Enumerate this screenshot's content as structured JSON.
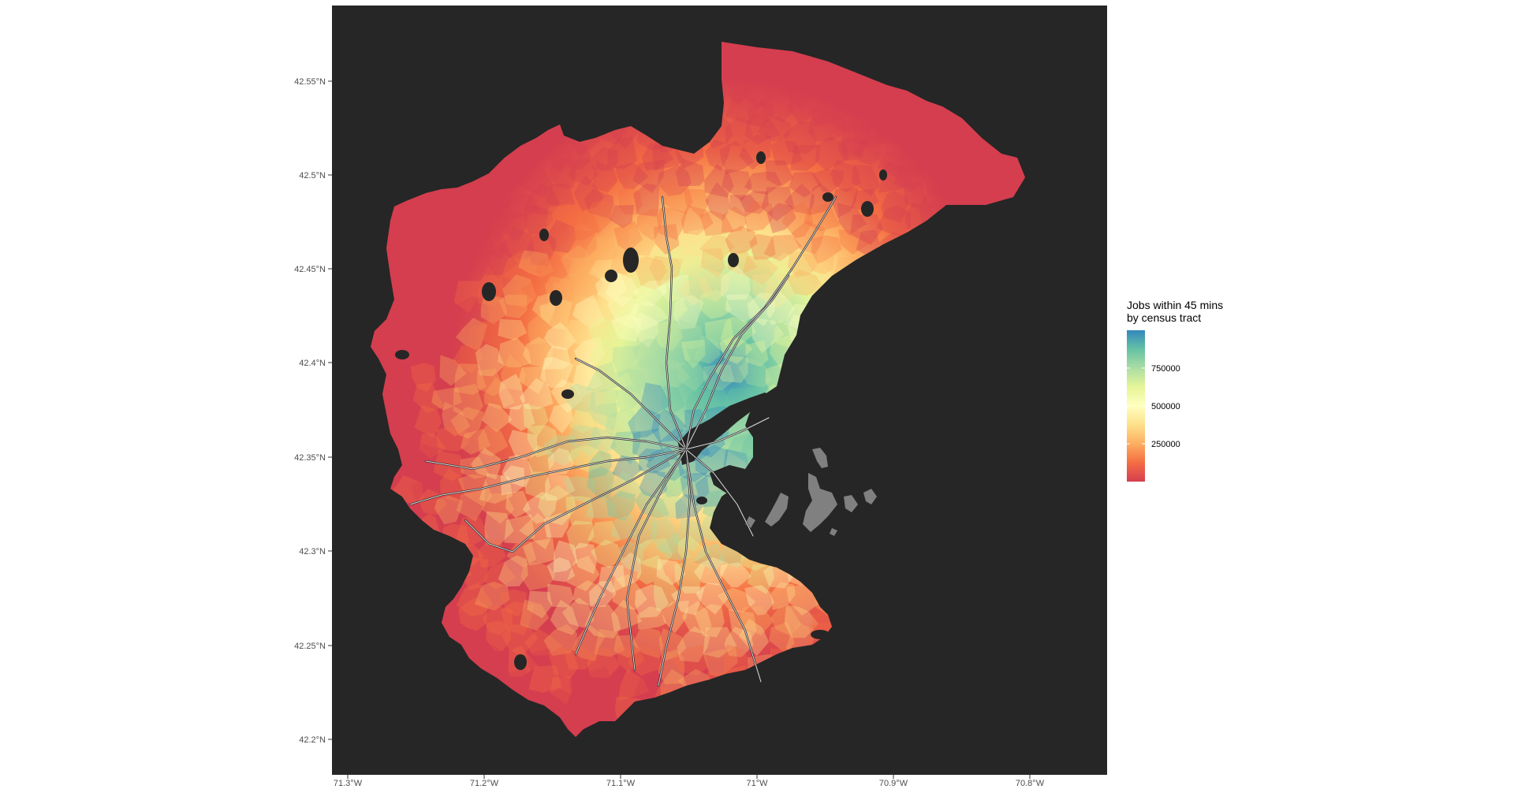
{
  "map": {
    "background_color": "#262626",
    "water_island_color": "#808080",
    "transit_line_color": "#ffffff",
    "palette": [
      "#d53e4f",
      "#f46d43",
      "#fdae61",
      "#fee08b",
      "#ffffbf",
      "#e6f598",
      "#abdda4",
      "#66c2a5",
      "#3288bd"
    ],
    "y_axis_ticks": [
      "42.55°N",
      "42.5°N",
      "42.45°N",
      "42.4°N",
      "42.35°N",
      "42.3°N",
      "42.25°N",
      "42.2°N"
    ],
    "x_axis_ticks": [
      "71.3°W",
      "71.2°W",
      "71.1°W",
      "71°W",
      "70.9°W",
      "70.8°W"
    ]
  },
  "legend": {
    "title_line1": "Jobs within 45 mins",
    "title_line2": "by census tract",
    "labels": [
      "750000",
      "500000",
      "250000"
    ],
    "range": [
      0,
      1000000
    ],
    "label_values": [
      750000,
      500000,
      250000
    ]
  }
}
